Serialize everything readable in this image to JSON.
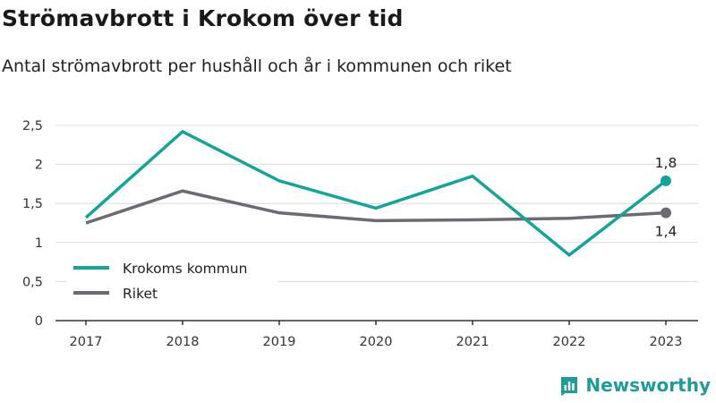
{
  "chart_data": {
    "type": "line",
    "title": "Strömavbrott i Krokom över tid",
    "subtitle": "Antal strömavbrott per hushåll och år i kommunen och riket",
    "x": [
      "2017",
      "2018",
      "2019",
      "2020",
      "2021",
      "2022",
      "2023"
    ],
    "yticks": [
      "0",
      "0,5",
      "1",
      "1,5",
      "2",
      "2,5"
    ],
    "ylim": [
      0,
      2.5
    ],
    "grid": true,
    "legend_position": "bottom-left",
    "series": [
      {
        "name": "Krokoms kommun",
        "color": "#16a39a",
        "values": [
          1.32,
          2.42,
          1.79,
          1.44,
          1.85,
          0.84,
          1.79
        ],
        "end_label": "1,8"
      },
      {
        "name": "Riket",
        "color": "#6b6b73",
        "values": [
          1.25,
          1.66,
          1.38,
          1.28,
          1.29,
          1.31,
          1.38
        ],
        "end_label": "1,4"
      }
    ]
  },
  "brand": {
    "name": "Newsworthy",
    "color": "#1f9c95"
  }
}
